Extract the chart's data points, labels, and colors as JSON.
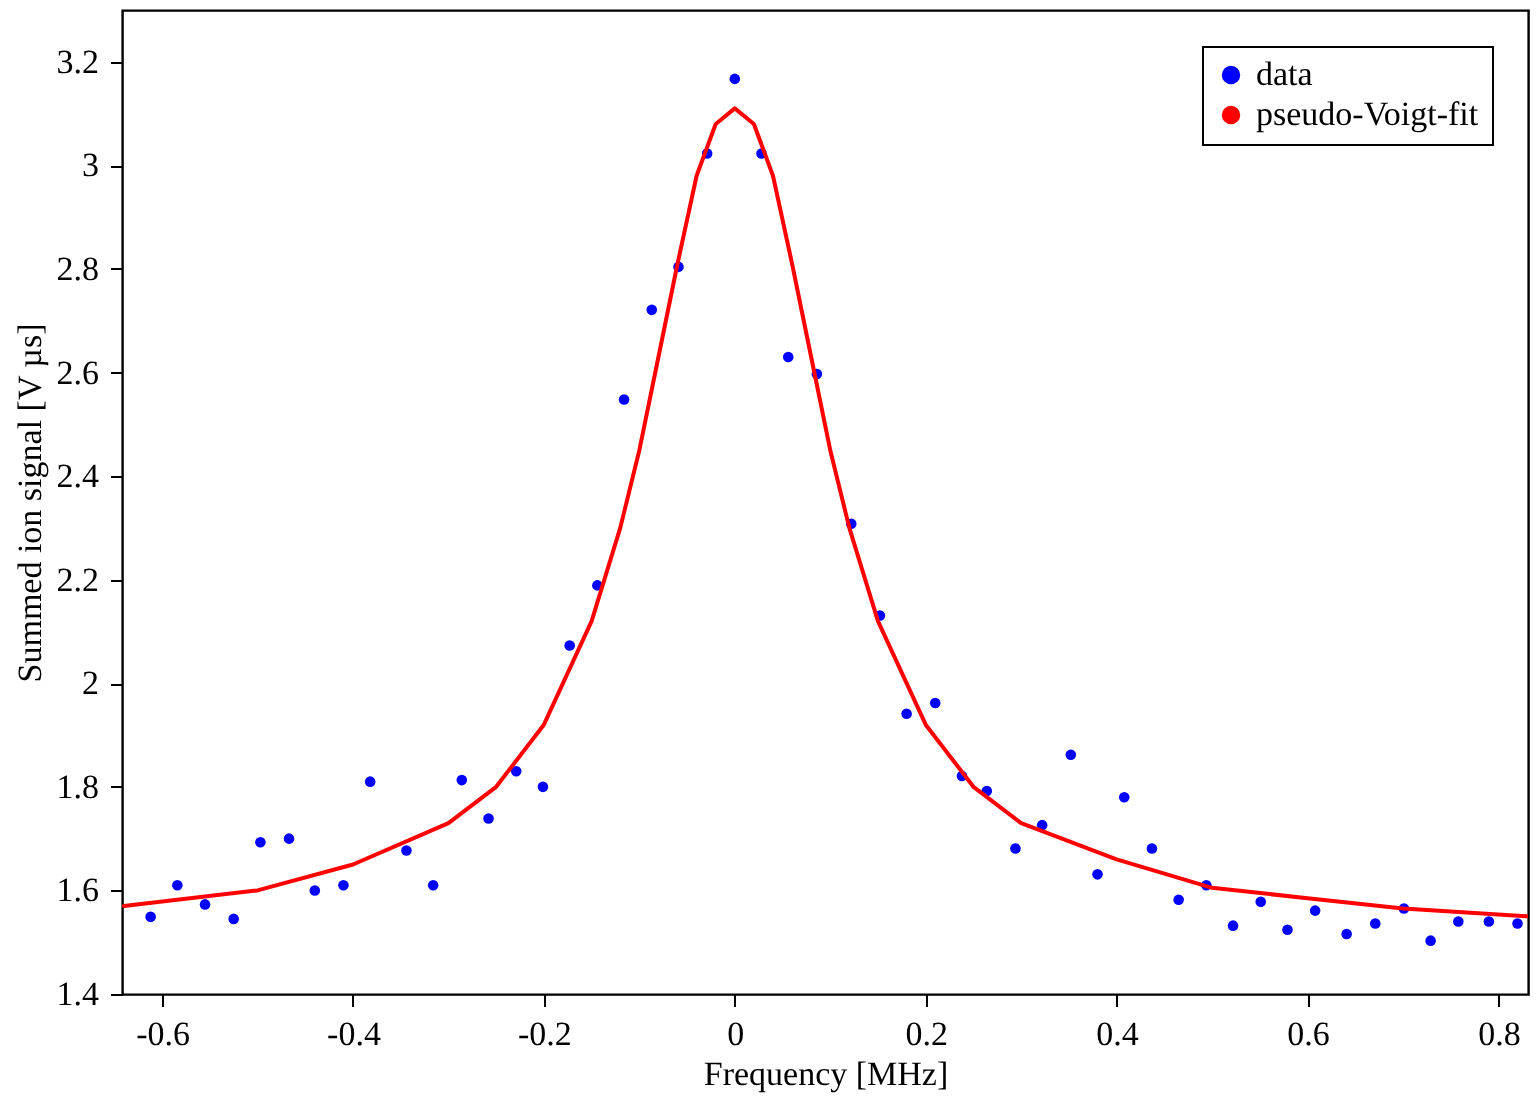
{
  "chart_data": {
    "type": "scatter",
    "xlabel": "Frequency [MHz]",
    "ylabel": "Summed ion signal [V µs]",
    "xlim": [
      -0.642,
      0.831
    ],
    "ylim": [
      1.4,
      3.3
    ],
    "xticks": [
      -0.6,
      -0.4,
      -0.2,
      0,
      0.2,
      0.4,
      0.6,
      0.8
    ],
    "yticks": [
      1.4,
      1.6,
      1.8,
      2,
      2.2,
      2.4,
      2.6,
      2.8,
      3,
      3.2
    ],
    "grid": false,
    "legend": "top right",
    "series": [
      {
        "name": "data",
        "marker": "circle",
        "color": "#0000ff",
        "x": [
          -0.612,
          -0.584,
          -0.555,
          -0.525,
          -0.497,
          -0.467,
          -0.44,
          -0.41,
          -0.382,
          -0.344,
          -0.316,
          -0.286,
          -0.258,
          -0.229,
          -0.201,
          -0.173,
          -0.144,
          -0.116,
          -0.087,
          -0.059,
          -0.029,
          0,
          0.028,
          0.056,
          0.086,
          0.122,
          0.152,
          0.18,
          0.21,
          0.238,
          0.264,
          0.294,
          0.322,
          0.352,
          0.38,
          0.408,
          0.437,
          0.465,
          0.494,
          0.522,
          0.551,
          0.579,
          0.608,
          0.641,
          0.671,
          0.701,
          0.729,
          0.758,
          0.79,
          0.82
        ],
        "values": [
          1.549,
          1.61,
          1.573,
          1.545,
          1.693,
          1.7,
          1.6,
          1.61,
          1.81,
          1.677,
          1.61,
          1.813,
          1.739,
          1.83,
          1.8,
          2.073,
          2.189,
          2.548,
          2.721,
          2.804,
          3.023,
          3.167,
          3.023,
          2.63,
          2.597,
          2.308,
          2.131,
          1.941,
          1.962,
          1.821,
          1.792,
          1.681,
          1.726,
          1.862,
          1.631,
          1.78,
          1.681,
          1.582,
          1.61,
          1.532,
          1.578,
          1.524,
          1.561,
          1.516,
          1.536,
          1.565,
          1.503,
          1.54,
          1.54,
          1.536
        ]
      },
      {
        "name": "pseudo-Voigt-fit",
        "type": "line",
        "line_style": "solid",
        "color": "#ff0000",
        "x": [
          -0.64,
          -0.5,
          -0.4,
          -0.3,
          -0.25,
          -0.2,
          -0.15,
          -0.12,
          -0.1,
          -0.08,
          -0.06,
          -0.04,
          -0.02,
          0,
          0.02,
          0.04,
          0.06,
          0.08,
          0.1,
          0.12,
          0.15,
          0.2,
          0.25,
          0.3,
          0.4,
          0.5,
          0.6,
          0.7,
          0.83
        ],
        "values": [
          1.57,
          1.6,
          1.65,
          1.73,
          1.8,
          1.92,
          2.12,
          2.3,
          2.45,
          2.63,
          2.81,
          2.98,
          3.08,
          3.11,
          3.08,
          2.98,
          2.81,
          2.63,
          2.45,
          2.3,
          2.12,
          1.92,
          1.8,
          1.73,
          1.66,
          1.605,
          1.585,
          1.565,
          1.55
        ]
      }
    ]
  }
}
